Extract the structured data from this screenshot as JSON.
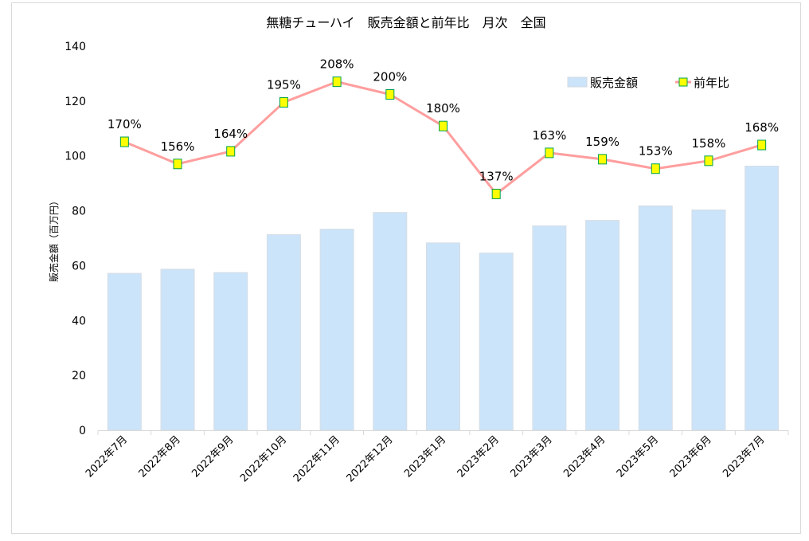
{
  "chart_data": {
    "type": "bar+line",
    "title": "無糖チューハイ　販売金額と前年比　月次　全国",
    "ylabel": "販売金額（百万円）",
    "xlabel": "",
    "ylim": [
      0,
      140
    ],
    "yticks": [
      0,
      20,
      40,
      60,
      80,
      100,
      120,
      140
    ],
    "y2lim": [
      -12.5,
      230.5
    ],
    "grid": false,
    "legend_position": "top-right",
    "categories": [
      "2022年7月",
      "2022年8月",
      "2022年9月",
      "2022年10月",
      "2022年11月",
      "2022年12月",
      "2023年1月",
      "2023年2月",
      "2023年3月",
      "2023年4月",
      "2023年5月",
      "2023年6月",
      "2023年7月"
    ],
    "series": [
      {
        "name": "販売金額",
        "type": "bar",
        "axis": "primary",
        "color": "#cce4fa",
        "values": [
          57.2,
          58.7,
          57.5,
          71.3,
          73.3,
          79.4,
          68.3,
          64.6,
          74.5,
          76.5,
          81.8,
          80.3,
          96.3
        ]
      },
      {
        "name": "前年比",
        "type": "line",
        "axis": "secondary",
        "color": "#ff9e9e",
        "marker_color": "#ffff00",
        "marker_edge": "#00a050",
        "values": [
          170,
          156,
          164,
          195,
          208,
          200,
          180,
          137,
          163,
          159,
          153,
          158,
          168
        ],
        "labels": [
          "170%",
          "156%",
          "164%",
          "195%",
          "208%",
          "200%",
          "180%",
          "137%",
          "163%",
          "159%",
          "153%",
          "158%",
          "168%"
        ]
      }
    ]
  }
}
